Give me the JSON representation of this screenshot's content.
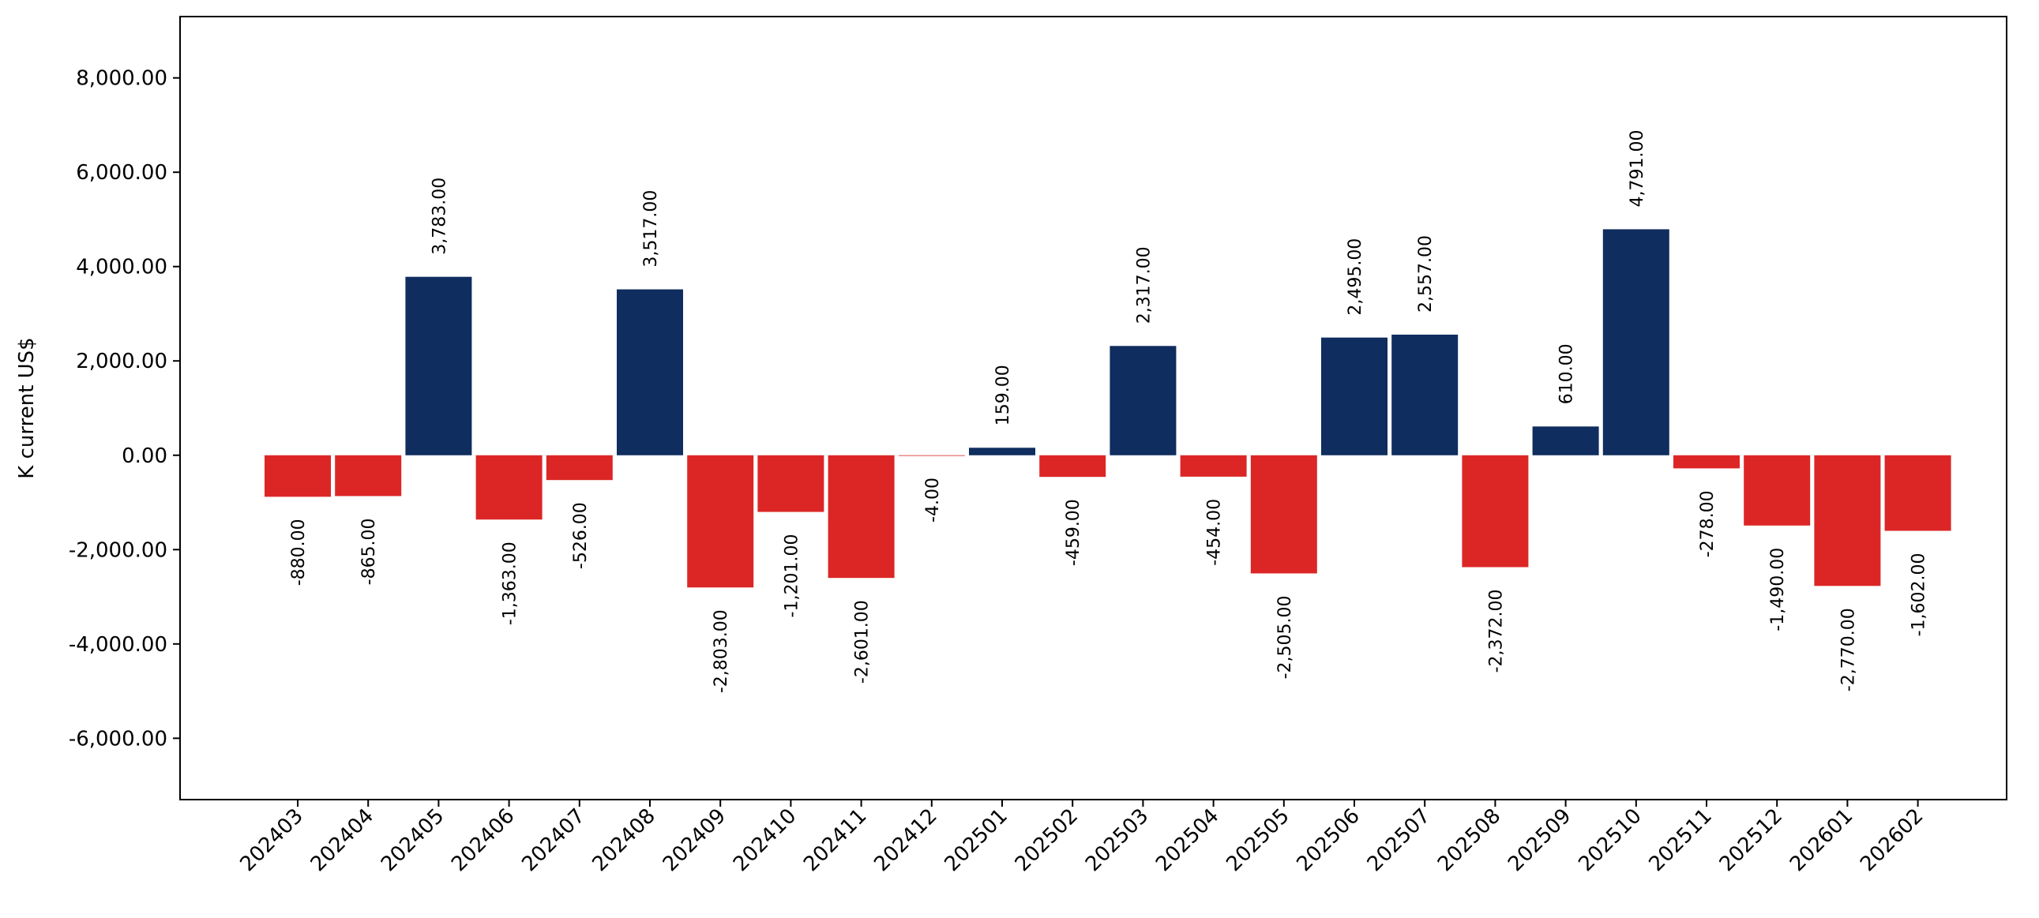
{
  "chart_data": {
    "type": "bar",
    "title": "",
    "xlabel": "",
    "ylabel": "K current US$",
    "ylim": [
      -7300,
      9300
    ],
    "grid": false,
    "legend": "none",
    "colors": {
      "positive": "#0f2d5e",
      "negative": "#dc2626"
    },
    "yticks": [
      -6000,
      -4000,
      -2000,
      0,
      2000,
      4000,
      6000,
      8000
    ],
    "ytick_labels": [
      "-6,000.00",
      "-4,000.00",
      "-2,000.00",
      "0.00",
      "2,000.00",
      "4,000.00",
      "6,000.00",
      "8,000.00"
    ],
    "categories": [
      "202403",
      "202404",
      "202405",
      "202406",
      "202407",
      "202408",
      "202409",
      "202410",
      "202411",
      "202412",
      "202501",
      "202502",
      "202503",
      "202504",
      "202505",
      "202506",
      "202507",
      "202508",
      "202509",
      "202510",
      "202511",
      "202512",
      "202601",
      "202602"
    ],
    "values": [
      -880,
      -865,
      3783,
      -1363,
      -526,
      3517,
      -2803,
      -1201,
      -2601,
      -4,
      159,
      -459,
      2317,
      -454,
      -2505,
      2495,
      2557,
      -2372,
      610,
      4791,
      -278,
      -1490,
      -2770,
      -1602
    ],
    "value_labels": [
      "-880.00",
      "-865.00",
      "3,783.00",
      "-1,363.00",
      "-526.00",
      "3,517.00",
      "-2,803.00",
      "-1,201.00",
      "-2,601.00",
      "-4.00",
      "159.00",
      "-459.00",
      "2,317.00",
      "-454.00",
      "-2,505.00",
      "2,495.00",
      "2,557.00",
      "-2,372.00",
      "610.00",
      "4,791.00",
      "-278.00",
      "-1,490.00",
      "-2,770.00",
      "-1,602.00"
    ]
  }
}
